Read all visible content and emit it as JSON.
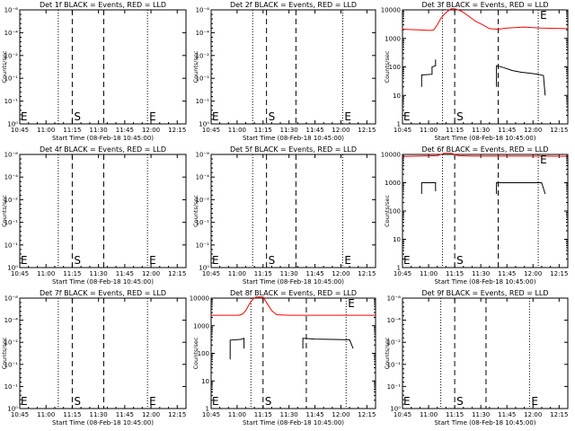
{
  "colors": {
    "events": "#000000",
    "lld": "#ff0000"
  },
  "common": {
    "xlabel": "Start Time (08-Feb-18 10:45:00)",
    "ylabel": "Counts/sec",
    "xticks": [
      "10:45",
      "11:00",
      "11:15",
      "11:30",
      "11:45",
      "12:00",
      "12:15"
    ],
    "xrange_min": [
      0,
      95
    ],
    "log_ticks_small": [
      "10⁻⁸",
      "10⁻⁴",
      "10⁻²",
      "10⁻¹",
      "10⁻¹",
      "10⁰"
    ],
    "log_ticks_data": [
      "10000",
      "1000",
      "100",
      "10",
      "1"
    ],
    "marker_S": "S",
    "marker_E": "E"
  },
  "chart_data": [
    {
      "type": "line",
      "title": "Det 1f BLACK = Events, RED = LLD",
      "yscale": "log",
      "has_data": false,
      "dotted_x": [
        22,
        73
      ],
      "dashed_x": [
        30,
        48
      ],
      "S_at": 30,
      "E_at": 73,
      "series": []
    },
    {
      "type": "line",
      "title": "Det 2f BLACK = Events, RED = LLD",
      "yscale": "log",
      "has_data": false,
      "dotted_x": [
        24,
        76
      ],
      "dashed_x": [
        32,
        49
      ],
      "S_at": 32,
      "E_at": 76,
      "series": []
    },
    {
      "type": "line",
      "title": "Det 3f BLACK = Events, RED = LLD",
      "yscale": "log",
      "ylim": [
        1,
        10000
      ],
      "has_data": true,
      "dotted_x": [
        23,
        78
      ],
      "dashed_x": [
        30,
        55
      ],
      "S_at": 30,
      "E_at": 78,
      "series": [
        {
          "color": "lld",
          "points": [
            [
              0,
              2100
            ],
            [
              16,
              1900
            ],
            [
              18,
              2000
            ],
            [
              20,
              3000
            ],
            [
              22,
              5000
            ],
            [
              24,
              7000
            ],
            [
              26,
              9000
            ],
            [
              28,
              11000
            ],
            [
              30,
              11000
            ],
            [
              34,
              9000
            ],
            [
              38,
              6000
            ],
            [
              42,
              4000
            ],
            [
              46,
              3000
            ],
            [
              50,
              2200
            ],
            [
              55,
              2100
            ],
            [
              60,
              2300
            ],
            [
              70,
              2500
            ],
            [
              75,
              2400
            ],
            [
              80,
              2300
            ],
            [
              95,
              2200
            ]
          ]
        },
        {
          "color": "events",
          "points": [
            [
              11,
              20
            ],
            [
              11,
              52
            ],
            [
              17,
              55
            ],
            [
              17,
              100
            ],
            [
              19,
              110
            ],
            [
              19,
              180
            ]
          ]
        },
        {
          "color": "events",
          "points": [
            [
              54,
              20
            ],
            [
              54,
              110
            ],
            [
              58,
              95
            ],
            [
              63,
              75
            ],
            [
              68,
              65
            ],
            [
              73,
              60
            ],
            [
              78,
              55
            ],
            [
              81,
              50
            ],
            [
              82,
              10
            ]
          ]
        }
      ]
    },
    {
      "type": "line",
      "title": "Det 4f BLACK = Events, RED = LLD",
      "yscale": "log",
      "has_data": false,
      "dotted_x": [
        22,
        73
      ],
      "dashed_x": [
        30,
        48
      ],
      "S_at": 30,
      "E_at": 73,
      "series": []
    },
    {
      "type": "line",
      "title": "Det 5f BLACK = Events, RED = LLD",
      "yscale": "log",
      "has_data": false,
      "dotted_x": [
        24,
        76
      ],
      "dashed_x": [
        32,
        49
      ],
      "S_at": 32,
      "E_at": 76,
      "series": []
    },
    {
      "type": "line",
      "title": "Det 6f BLACK = Events, RED = LLD",
      "yscale": "log",
      "ylim": [
        1,
        10000
      ],
      "has_data": true,
      "dotted_x": [
        23,
        78
      ],
      "dashed_x": [
        30,
        55
      ],
      "S_at": 30,
      "E_at": 78,
      "series": [
        {
          "color": "lld",
          "points": [
            [
              0,
              8500
            ],
            [
              20,
              9000
            ],
            [
              24,
              11000
            ],
            [
              28,
              11000
            ],
            [
              32,
              9000
            ],
            [
              40,
              8700
            ],
            [
              60,
              8700
            ],
            [
              80,
              8700
            ],
            [
              95,
              8600
            ]
          ]
        },
        {
          "color": "events",
          "points": [
            [
              11,
              400
            ],
            [
              11,
              1000
            ],
            [
              19,
              1000
            ],
            [
              19,
              500
            ]
          ]
        },
        {
          "color": "events",
          "points": [
            [
              54,
              400
            ],
            [
              54,
              1000
            ],
            [
              60,
              1000
            ],
            [
              70,
              1000
            ],
            [
              80,
              1000
            ],
            [
              82,
              400
            ]
          ]
        }
      ]
    },
    {
      "type": "line",
      "title": "Det 7f BLACK = Events, RED = LLD",
      "yscale": "log",
      "has_data": false,
      "dotted_x": [
        22,
        73
      ],
      "dashed_x": [
        30,
        48
      ],
      "S_at": 30,
      "E_at": 73,
      "series": []
    },
    {
      "type": "line",
      "title": "Det 8f BLACK = Events, RED = LLD",
      "yscale": "log",
      "ylim": [
        1,
        10000
      ],
      "has_data": true,
      "dotted_x": [
        23,
        78
      ],
      "dashed_x": [
        30,
        55
      ],
      "S_at": 30,
      "E_at": 78,
      "series": [
        {
          "color": "lld",
          "points": [
            [
              0,
              2400
            ],
            [
              16,
              2400
            ],
            [
              18,
              2600
            ],
            [
              20,
              3500
            ],
            [
              22,
              6000
            ],
            [
              24,
              9000
            ],
            [
              26,
              11000
            ],
            [
              30,
              11000
            ],
            [
              32,
              7000
            ],
            [
              35,
              3500
            ],
            [
              38,
              2500
            ],
            [
              45,
              2400
            ],
            [
              60,
              2400
            ],
            [
              80,
              2400
            ],
            [
              95,
              2400
            ]
          ]
        },
        {
          "color": "events",
          "points": [
            [
              11,
              60
            ],
            [
              11,
              300
            ],
            [
              17,
              320
            ],
            [
              19,
              350
            ],
            [
              19,
              150
            ]
          ]
        },
        {
          "color": "events",
          "points": [
            [
              53,
              150
            ],
            [
              53,
              350
            ],
            [
              60,
              330
            ],
            [
              70,
              320
            ],
            [
              80,
              310
            ],
            [
              82,
              150
            ]
          ]
        }
      ]
    },
    {
      "type": "line",
      "title": "Det 9f BLACK = Events, RED = LLD",
      "yscale": "log",
      "has_data": false,
      "dotted_x": [
        22,
        73
      ],
      "dashed_x": [
        30,
        48
      ],
      "S_at": 30,
      "E_at": 73,
      "series": []
    }
  ]
}
